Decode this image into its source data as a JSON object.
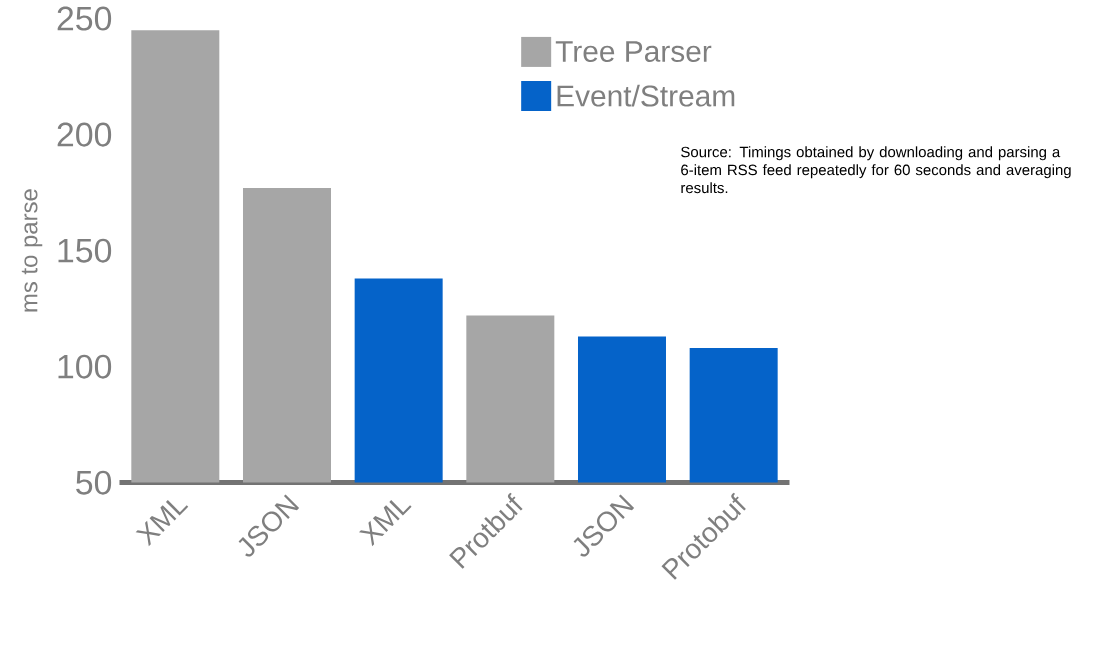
{
  "chart_data": {
    "type": "bar",
    "ylabel": "ms to parse",
    "categories": [
      "XML",
      "JSON",
      "XML",
      "Protbuf",
      "JSON",
      "Protobuf"
    ],
    "series": [
      {
        "name": "Tree Parser",
        "color": "#a6a6a6",
        "values": [
          245,
          177,
          null,
          122,
          null,
          null
        ]
      },
      {
        "name": "Event/Stream",
        "color": "#0563c9",
        "values": [
          null,
          null,
          138,
          null,
          113,
          108
        ]
      }
    ],
    "ylim": [
      50,
      250
    ],
    "yticks": [
      50,
      100,
      150,
      200,
      250
    ],
    "legend": "top right",
    "annotations": [
      "Source: Timings obtained by downloading and parsing a 6-item RSS feed repeatedly for 60 seconds and averaging results."
    ]
  }
}
